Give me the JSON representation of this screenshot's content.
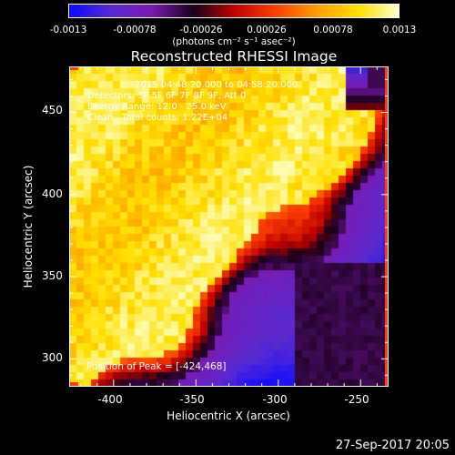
{
  "colorbar": {
    "ticks": [
      "-0.0013",
      "-0.00078",
      "-0.00026",
      "0.00026",
      "0.00078",
      "0.0013"
    ],
    "unit": "(photons cm⁻² s⁻¹ asec⁻²)",
    "range": [
      -0.0013,
      0.0013
    ]
  },
  "info": {
    "line1": "Detectors: 3F 5F 6F 7F 8F 9F, Att 0",
    "line2": "Energy Range: 12.0 - 25.0 keV",
    "line3": "Clean . Total counts: 1.22E+04",
    "time_partial": "2015 04:48:20.000 to 04:58:20.000"
  },
  "chart_data": {
    "type": "heatmap",
    "title": "Reconstructed RHESSI Image",
    "xlabel": "Heliocentric X (arcsec)",
    "ylabel": "Heliocentric Y (arcsec)",
    "xlim": [
      -427,
      -233
    ],
    "ylim": [
      283,
      478
    ],
    "xticks": [
      -400,
      -350,
      -300,
      -250
    ],
    "yticks": [
      300,
      350,
      400,
      450
    ],
    "peak_label": "Position of Peak = [-424,468]",
    "peak_position": [
      -424,
      468
    ],
    "colormap": "RHESSI blue-purple-red-yellow-white",
    "colorbar_colors": [
      "#0a0aff",
      "#5a2ad0",
      "#7a1ab0",
      "#1a001a",
      "#c00000",
      "#ff4000",
      "#ff9a00",
      "#ffe000",
      "#ffffd0"
    ]
  },
  "footer": {
    "timestamp": "27-Sep-2017 20:05"
  }
}
